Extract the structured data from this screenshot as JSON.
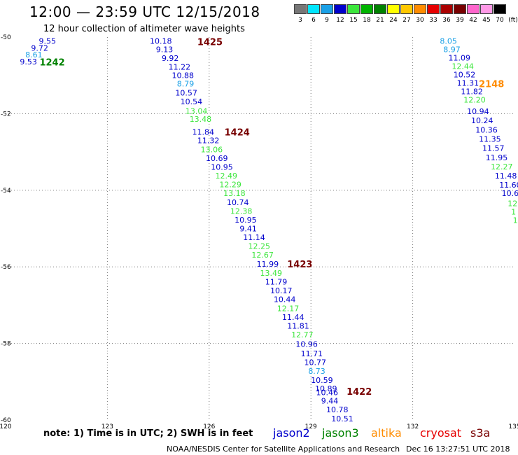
{
  "header": {
    "title": "12:00 — 23:59 UTC 12/15/2018",
    "subtitle": "12 hour collection of altimeter wave heights"
  },
  "scale": {
    "unit": "(ft)",
    "bins": [
      {
        "label": "3",
        "color": "#777777"
      },
      {
        "label": "6",
        "color": "#00e6ff"
      },
      {
        "label": "9",
        "color": "#1aa0e6"
      },
      {
        "label": "12",
        "color": "#0000cc"
      },
      {
        "label": "15",
        "color": "#3ce63c"
      },
      {
        "label": "18",
        "color": "#00b400"
      },
      {
        "label": "21",
        "color": "#008200"
      },
      {
        "label": "24",
        "color": "#ffff00"
      },
      {
        "label": "27",
        "color": "#ffc800"
      },
      {
        "label": "30",
        "color": "#ff8c00"
      },
      {
        "label": "33",
        "color": "#e60000"
      },
      {
        "label": "36",
        "color": "#aa0000"
      },
      {
        "label": "39",
        "color": "#780000"
      },
      {
        "label": "42",
        "color": "#ff66cc"
      },
      {
        "label": "45",
        "color": "#ff99e6"
      },
      {
        "label": "70",
        "color": "#000000"
      }
    ]
  },
  "axes": {
    "lon_ticks": [
      "120",
      "123",
      "126",
      "129",
      "132",
      "135"
    ],
    "lat_ticks": [
      "-50",
      "-52",
      "-54",
      "-56",
      "-58",
      "-60"
    ]
  },
  "chart_data": {
    "type": "scatter",
    "x_range": [
      120,
      135
    ],
    "y_range": [
      -60,
      -50
    ],
    "grid": "dotted",
    "labels": [
      {
        "text": "9.55",
        "lon": 120.98,
        "lat": -50.1,
        "color": "#0000cc"
      },
      {
        "text": "9.72",
        "lon": 120.75,
        "lat": -50.28,
        "color": "#0000cc"
      },
      {
        "text": "8.61",
        "lon": 120.58,
        "lat": -50.46,
        "color": "#1aa0e6"
      },
      {
        "text": "9.53",
        "lon": 120.42,
        "lat": -50.64,
        "color": "#0000cc"
      },
      {
        "text": "10.18",
        "lon": 124.25,
        "lat": -50.1,
        "color": "#0000cc"
      },
      {
        "text": "9.13",
        "lon": 124.43,
        "lat": -50.32,
        "color": "#0000cc"
      },
      {
        "text": "9.92",
        "lon": 124.6,
        "lat": -50.55,
        "color": "#0000cc"
      },
      {
        "text": "11.22",
        "lon": 124.8,
        "lat": -50.78,
        "color": "#0000cc"
      },
      {
        "text": "10.88",
        "lon": 124.9,
        "lat": -51.0,
        "color": "#0000cc"
      },
      {
        "text": "8.79",
        "lon": 125.05,
        "lat": -51.22,
        "color": "#1aa0e6"
      },
      {
        "text": "10.57",
        "lon": 125.0,
        "lat": -51.45,
        "color": "#0000cc"
      },
      {
        "text": "10.54",
        "lon": 125.15,
        "lat": -51.68,
        "color": "#0000cc"
      },
      {
        "text": "13.04",
        "lon": 125.3,
        "lat": -51.93,
        "color": "#3ce63c"
      },
      {
        "text": "13.48",
        "lon": 125.42,
        "lat": -52.14,
        "color": "#3ce63c"
      },
      {
        "text": "11.84",
        "lon": 125.5,
        "lat": -52.48,
        "color": "#0000cc"
      },
      {
        "text": "11.32",
        "lon": 125.65,
        "lat": -52.7,
        "color": "#0000cc"
      },
      {
        "text": "13.06",
        "lon": 125.75,
        "lat": -52.93,
        "color": "#3ce63c"
      },
      {
        "text": "10.69",
        "lon": 125.9,
        "lat": -53.16,
        "color": "#0000cc"
      },
      {
        "text": "10.95",
        "lon": 126.05,
        "lat": -53.39,
        "color": "#0000cc"
      },
      {
        "text": "12.49",
        "lon": 126.18,
        "lat": -53.62,
        "color": "#3ce63c"
      },
      {
        "text": "12.29",
        "lon": 126.3,
        "lat": -53.85,
        "color": "#3ce63c"
      },
      {
        "text": "13.18",
        "lon": 126.42,
        "lat": -54.08,
        "color": "#3ce63c"
      },
      {
        "text": "10.74",
        "lon": 126.52,
        "lat": -54.31,
        "color": "#0000cc"
      },
      {
        "text": "12.38",
        "lon": 126.62,
        "lat": -54.54,
        "color": "#3ce63c"
      },
      {
        "text": "10.95",
        "lon": 126.75,
        "lat": -54.77,
        "color": "#0000cc"
      },
      {
        "text": "9.41",
        "lon": 126.9,
        "lat": -55.0,
        "color": "#0000cc"
      },
      {
        "text": "11.14",
        "lon": 127.0,
        "lat": -55.23,
        "color": "#0000cc"
      },
      {
        "text": "12.25",
        "lon": 127.15,
        "lat": -55.46,
        "color": "#3ce63c"
      },
      {
        "text": "12.67",
        "lon": 127.25,
        "lat": -55.69,
        "color": "#3ce63c"
      },
      {
        "text": "11.99",
        "lon": 127.4,
        "lat": -55.92,
        "color": "#0000cc"
      },
      {
        "text": "13.49",
        "lon": 127.5,
        "lat": -56.16,
        "color": "#3ce63c"
      },
      {
        "text": "11.79",
        "lon": 127.65,
        "lat": -56.39,
        "color": "#0000cc"
      },
      {
        "text": "10.17",
        "lon": 127.8,
        "lat": -56.62,
        "color": "#0000cc"
      },
      {
        "text": "10.44",
        "lon": 127.9,
        "lat": -56.85,
        "color": "#0000cc"
      },
      {
        "text": "12.17",
        "lon": 128.0,
        "lat": -57.08,
        "color": "#3ce63c"
      },
      {
        "text": "11.44",
        "lon": 128.15,
        "lat": -57.31,
        "color": "#0000cc"
      },
      {
        "text": "11.81",
        "lon": 128.3,
        "lat": -57.54,
        "color": "#0000cc"
      },
      {
        "text": "12.77",
        "lon": 128.42,
        "lat": -57.77,
        "color": "#3ce63c"
      },
      {
        "text": "10.96",
        "lon": 128.55,
        "lat": -58.02,
        "color": "#0000cc"
      },
      {
        "text": "11.71",
        "lon": 128.7,
        "lat": -58.26,
        "color": "#0000cc"
      },
      {
        "text": "10.77",
        "lon": 128.8,
        "lat": -58.49,
        "color": "#0000cc"
      },
      {
        "text": "8.73",
        "lon": 128.92,
        "lat": -58.72,
        "color": "#1aa0e6"
      },
      {
        "text": "10.59",
        "lon": 129.0,
        "lat": -58.96,
        "color": "#0000cc"
      },
      {
        "text": "10.89",
        "lon": 129.12,
        "lat": -59.18,
        "color": "#0000cc"
      },
      {
        "text": "10.46",
        "lon": 129.15,
        "lat": -59.28,
        "color": "#0000cc"
      },
      {
        "text": "9.44",
        "lon": 129.3,
        "lat": -59.5,
        "color": "#0000cc"
      },
      {
        "text": "10.78",
        "lon": 129.45,
        "lat": -59.73,
        "color": "#0000cc"
      },
      {
        "text": "10.51",
        "lon": 129.6,
        "lat": -59.96,
        "color": "#0000cc"
      },
      {
        "text": "8.05",
        "lon": 132.8,
        "lat": -50.1,
        "color": "#1aa0e6"
      },
      {
        "text": "8.97",
        "lon": 132.9,
        "lat": -50.32,
        "color": "#1aa0e6"
      },
      {
        "text": "11.09",
        "lon": 133.05,
        "lat": -50.54,
        "color": "#0000cc"
      },
      {
        "text": "12.44",
        "lon": 133.15,
        "lat": -50.76,
        "color": "#3ce63c"
      },
      {
        "text": "10.52",
        "lon": 133.2,
        "lat": -50.98,
        "color": "#0000cc"
      },
      {
        "text": "11.31",
        "lon": 133.3,
        "lat": -51.2,
        "color": "#0000cc"
      },
      {
        "text": "11.82",
        "lon": 133.42,
        "lat": -51.42,
        "color": "#0000cc"
      },
      {
        "text": "12.20",
        "lon": 133.5,
        "lat": -51.64,
        "color": "#3ce63c"
      },
      {
        "text": "10.94",
        "lon": 133.6,
        "lat": -51.94,
        "color": "#0000cc"
      },
      {
        "text": "10.24",
        "lon": 133.72,
        "lat": -52.18,
        "color": "#0000cc"
      },
      {
        "text": "10.36",
        "lon": 133.85,
        "lat": -52.42,
        "color": "#0000cc"
      },
      {
        "text": "11.35",
        "lon": 133.95,
        "lat": -52.66,
        "color": "#0000cc"
      },
      {
        "text": "11.57",
        "lon": 134.05,
        "lat": -52.9,
        "color": "#0000cc"
      },
      {
        "text": "11.95",
        "lon": 134.15,
        "lat": -53.14,
        "color": "#0000cc"
      },
      {
        "text": "12.27",
        "lon": 134.3,
        "lat": -53.38,
        "color": "#3ce63c"
      },
      {
        "text": "11.48",
        "lon": 134.42,
        "lat": -53.62,
        "color": "#0000cc"
      },
      {
        "text": "11.60",
        "lon": 134.55,
        "lat": -53.86,
        "color": "#0000cc"
      },
      {
        "text": "10.6",
        "lon": 134.62,
        "lat": -54.08,
        "color": "#0000cc"
      },
      {
        "text": "12.",
        "lon": 134.8,
        "lat": -54.34,
        "color": "#3ce63c"
      },
      {
        "text": "1",
        "lon": 134.9,
        "lat": -54.56,
        "color": "#3ce63c"
      },
      {
        "text": "1",
        "lon": 134.95,
        "lat": -54.78,
        "color": "#3ce63c"
      }
    ],
    "track_markers": [
      {
        "text": "1242",
        "lon": 121.0,
        "lat": -50.65,
        "color": "#008200"
      },
      {
        "text": "1425",
        "lon": 125.65,
        "lat": -50.12,
        "color": "#780000"
      },
      {
        "text": "1424",
        "lon": 126.45,
        "lat": -52.48,
        "color": "#780000"
      },
      {
        "text": "2148",
        "lon": 133.95,
        "lat": -51.22,
        "color": "#ff8c00"
      },
      {
        "text": "1423",
        "lon": 128.3,
        "lat": -55.92,
        "color": "#780000"
      },
      {
        "text": "1422",
        "lon": 130.05,
        "lat": -59.25,
        "color": "#780000"
      }
    ]
  },
  "footer": {
    "note": "note: 1) Time is in UTC; 2) SWH is in feet",
    "satellites": [
      {
        "name": "jason2",
        "color": "#0000cc"
      },
      {
        "name": "jason3",
        "color": "#008200"
      },
      {
        "name": "altika",
        "color": "#ff8c00"
      },
      {
        "name": "cryosat",
        "color": "#e60000"
      },
      {
        "name": "s3a",
        "color": "#780000"
      }
    ],
    "credit": "NOAA/NESDIS Center for Satellite Applications and Research",
    "timestamp": "Dec 16 13:27:51 UTC 2018"
  }
}
